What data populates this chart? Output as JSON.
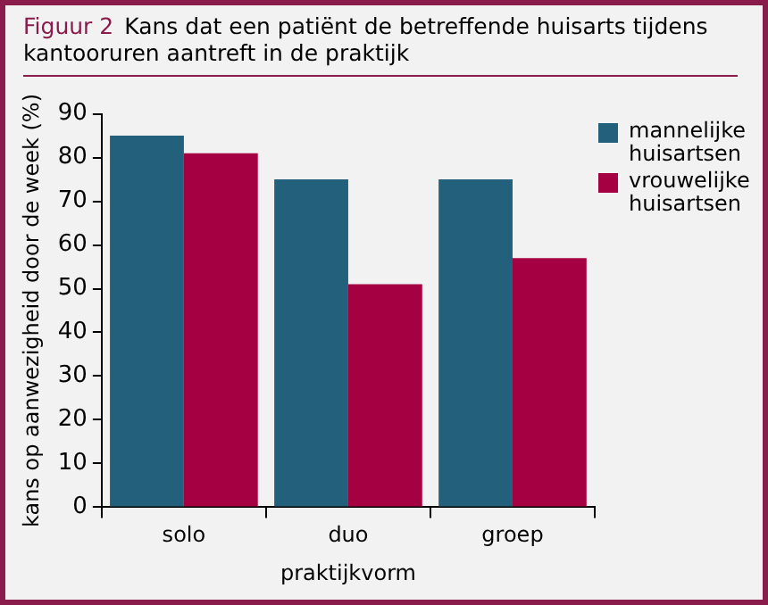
{
  "chart_data": {
    "type": "bar",
    "title": "Figuur 2",
    "subtitle": "Kans dat een patiënt de betreffende huisarts tijdens kantooruren aantreft in de praktijk",
    "xlabel": "praktijkvorm",
    "ylabel": "kans op aanwezigheid door de week (%)",
    "categories": [
      "solo",
      "duo",
      "groep"
    ],
    "series": [
      {
        "name": "mannelijke huisartsen",
        "color": "#22607c",
        "values": [
          85,
          75,
          75
        ]
      },
      {
        "name": "vrouwelijke huisartsen",
        "color": "#a50041",
        "values": [
          81,
          51,
          57
        ]
      }
    ],
    "ylim": [
      0,
      90
    ],
    "yticks": [
      0,
      10,
      20,
      30,
      40,
      50,
      60,
      70,
      80,
      90
    ],
    "grid": false,
    "legend": "right"
  }
}
